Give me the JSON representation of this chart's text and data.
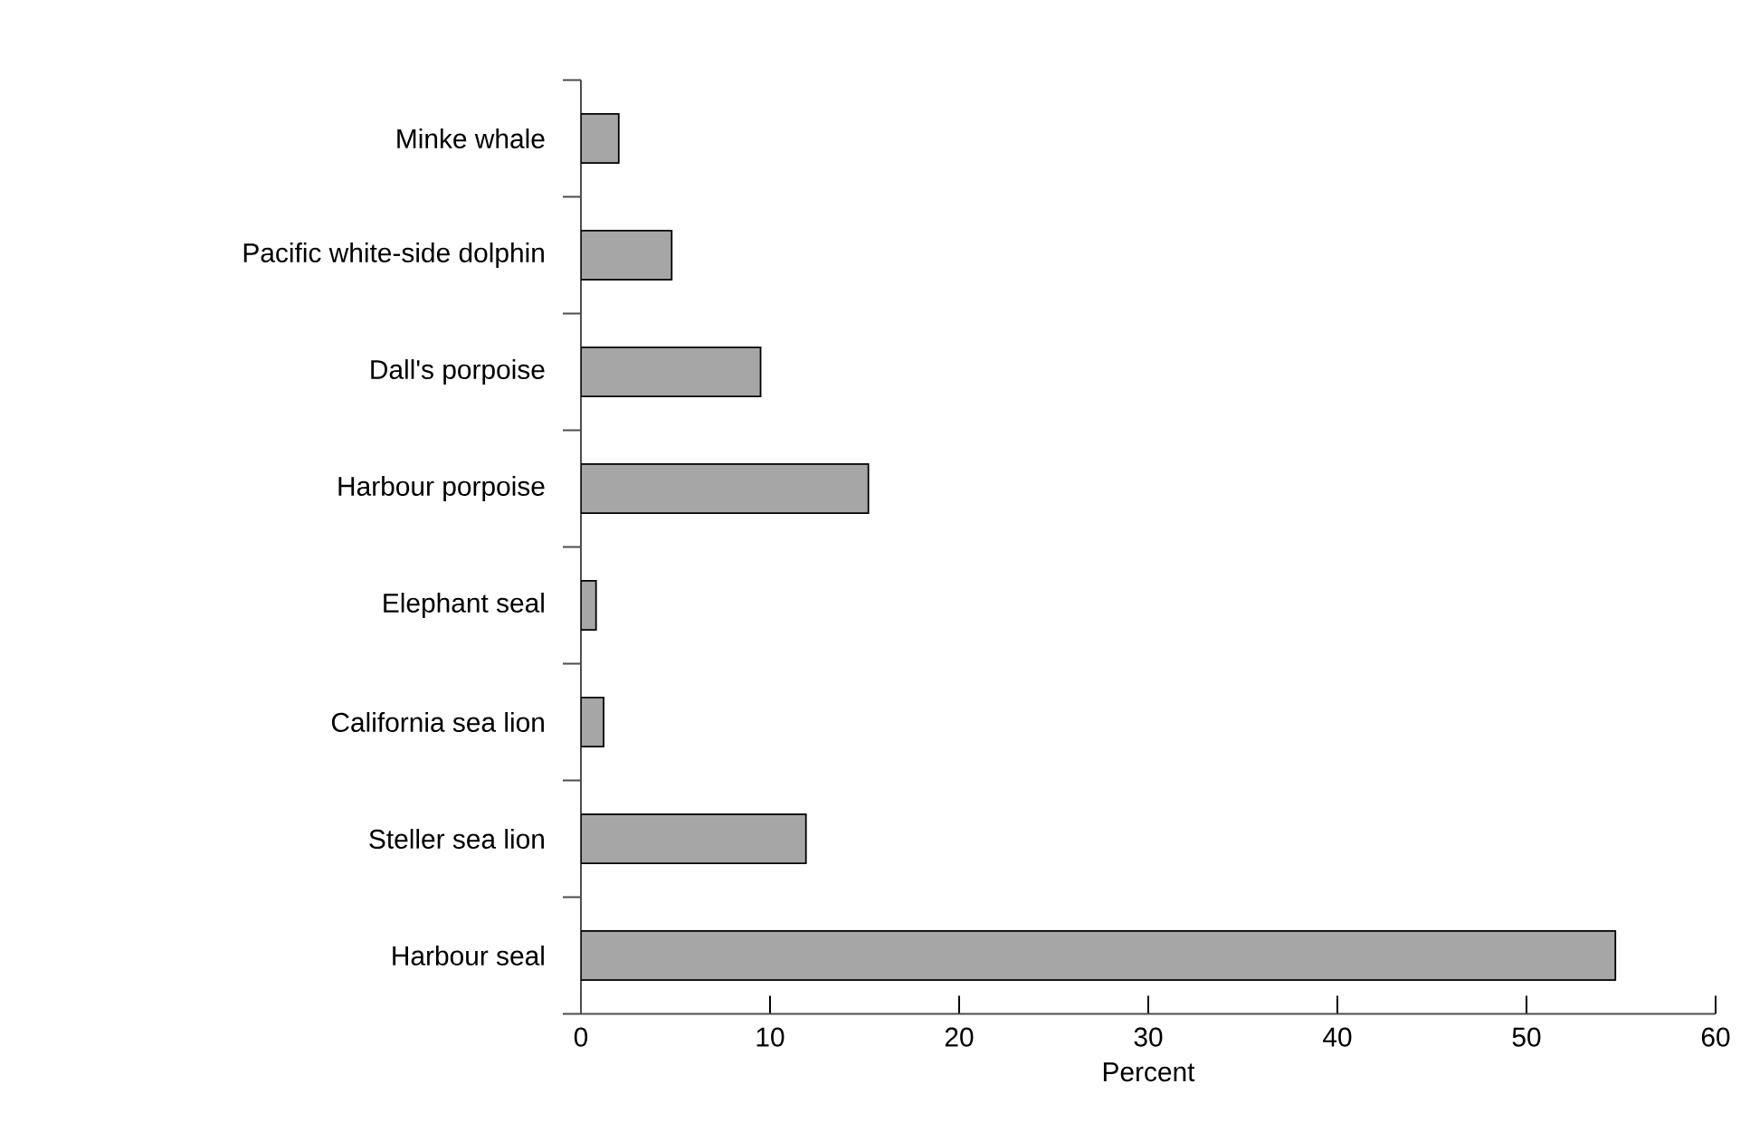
{
  "chart_data": {
    "type": "bar",
    "orientation": "horizontal",
    "xlabel": "Percent",
    "categories": [
      "Minke whale",
      "Pacific white-side dolphin",
      "Dall's porpoise",
      "Harbour porpoise",
      "Elephant seal",
      "California sea lion",
      "Steller sea lion",
      "Harbour seal"
    ],
    "values": [
      2.0,
      4.8,
      9.5,
      15.2,
      0.8,
      1.2,
      11.9,
      54.7
    ],
    "color": "#a6a6a6",
    "xlim": [
      0,
      60
    ],
    "xticks": [
      0,
      10,
      20,
      30,
      40,
      50,
      60
    ]
  }
}
